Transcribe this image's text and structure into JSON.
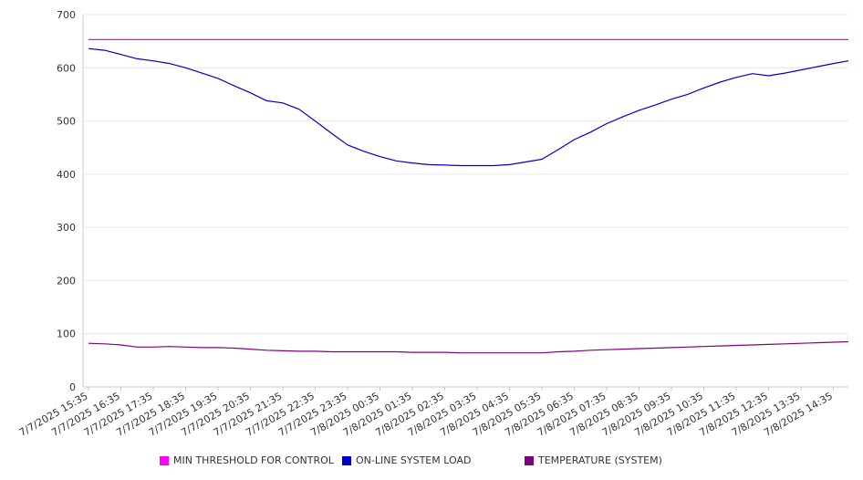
{
  "chart_data": {
    "type": "line",
    "title": "",
    "xlabel": "",
    "ylabel": "",
    "ylim": [
      0,
      700
    ],
    "y_ticks": [
      "0",
      "100",
      "200",
      "300",
      "400",
      "500",
      "600",
      "700"
    ],
    "grid": true,
    "legend_position": "bottom",
    "x_tick_labels": [
      "7/7/2025 15:35",
      "7/7/2025 16:35",
      "7/7/2025 17:35",
      "7/7/2025 18:35",
      "7/7/2025 19:35",
      "7/7/2025 20:35",
      "7/7/2025 21:35",
      "7/7/2025 22:35",
      "7/7/2025 23:35",
      "7/8/2025 00:35",
      "7/8/2025 01:35",
      "7/8/2025 02:35",
      "7/8/2025 03:35",
      "7/8/2025 04:35",
      "7/8/2025 05:35",
      "7/8/2025 06:35",
      "7/8/2025 07:35",
      "7/8/2025 08:35",
      "7/8/2025 09:35",
      "7/8/2025 10:35",
      "7/8/2025 11:35",
      "7/8/2025 12:35",
      "7/8/2025 13:35",
      "7/8/2025 14:35"
    ],
    "x": [
      "7/7/2025 15:35",
      "7/7/2025 16:05",
      "7/7/2025 16:35",
      "7/7/2025 17:05",
      "7/7/2025 17:35",
      "7/7/2025 18:05",
      "7/7/2025 18:35",
      "7/7/2025 19:05",
      "7/7/2025 19:35",
      "7/7/2025 20:05",
      "7/7/2025 20:35",
      "7/7/2025 21:05",
      "7/7/2025 21:35",
      "7/7/2025 22:05",
      "7/7/2025 22:35",
      "7/7/2025 23:05",
      "7/7/2025 23:35",
      "7/8/2025 00:05",
      "7/8/2025 00:35",
      "7/8/2025 01:05",
      "7/8/2025 01:35",
      "7/8/2025 02:05",
      "7/8/2025 02:35",
      "7/8/2025 03:05",
      "7/8/2025 03:35",
      "7/8/2025 04:05",
      "7/8/2025 04:35",
      "7/8/2025 05:05",
      "7/8/2025 05:35",
      "7/8/2025 06:05",
      "7/8/2025 06:35",
      "7/8/2025 07:05",
      "7/8/2025 07:35",
      "7/8/2025 08:05",
      "7/8/2025 08:35",
      "7/8/2025 09:05",
      "7/8/2025 09:35",
      "7/8/2025 10:05",
      "7/8/2025 10:35",
      "7/8/2025 11:05",
      "7/8/2025 11:35",
      "7/8/2025 12:05",
      "7/8/2025 12:35",
      "7/8/2025 13:05",
      "7/8/2025 13:35",
      "7/8/2025 14:05",
      "7/8/2025 14:35",
      "7/8/2025 15:05"
    ],
    "series": [
      {
        "name": "MIN THRESHOLD FOR CONTROL",
        "color": "#ff00ff",
        "values": [
          653,
          653,
          653,
          653,
          653,
          653,
          653,
          653,
          653,
          653,
          653,
          653,
          653,
          653,
          653,
          653,
          653,
          653,
          653,
          653,
          653,
          653,
          653,
          653,
          653,
          653,
          653,
          653,
          653,
          653,
          653,
          653,
          653,
          653,
          653,
          653,
          653,
          653,
          653,
          653,
          653,
          653,
          653,
          653,
          653,
          653,
          653,
          653
        ]
      },
      {
        "name": "ON-LINE SYSTEM LOAD",
        "color": "#0000cc",
        "values": [
          636,
          633,
          625,
          617,
          613,
          608,
          600,
          590,
          580,
          566,
          553,
          538,
          534,
          522,
          500,
          477,
          455,
          443,
          433,
          425,
          421,
          418,
          417,
          416,
          416,
          416,
          418,
          423,
          428,
          446,
          465,
          479,
          495,
          508,
          520,
          530,
          541,
          550,
          562,
          573,
          582,
          589,
          585,
          590,
          596,
          602,
          608,
          613
        ]
      },
      {
        "name": "TEMPERATURE (SYSTEM)",
        "color": "#800080",
        "values": [
          82,
          81,
          79,
          75,
          75,
          76,
          75,
          74,
          74,
          73,
          71,
          69,
          68,
          67,
          67,
          66,
          66,
          66,
          66,
          66,
          65,
          65,
          65,
          64,
          64,
          64,
          64,
          64,
          64,
          66,
          67,
          69,
          70,
          71,
          72,
          73,
          74,
          75,
          76,
          77,
          78,
          79,
          80,
          81,
          82,
          83,
          84,
          85
        ]
      }
    ]
  }
}
